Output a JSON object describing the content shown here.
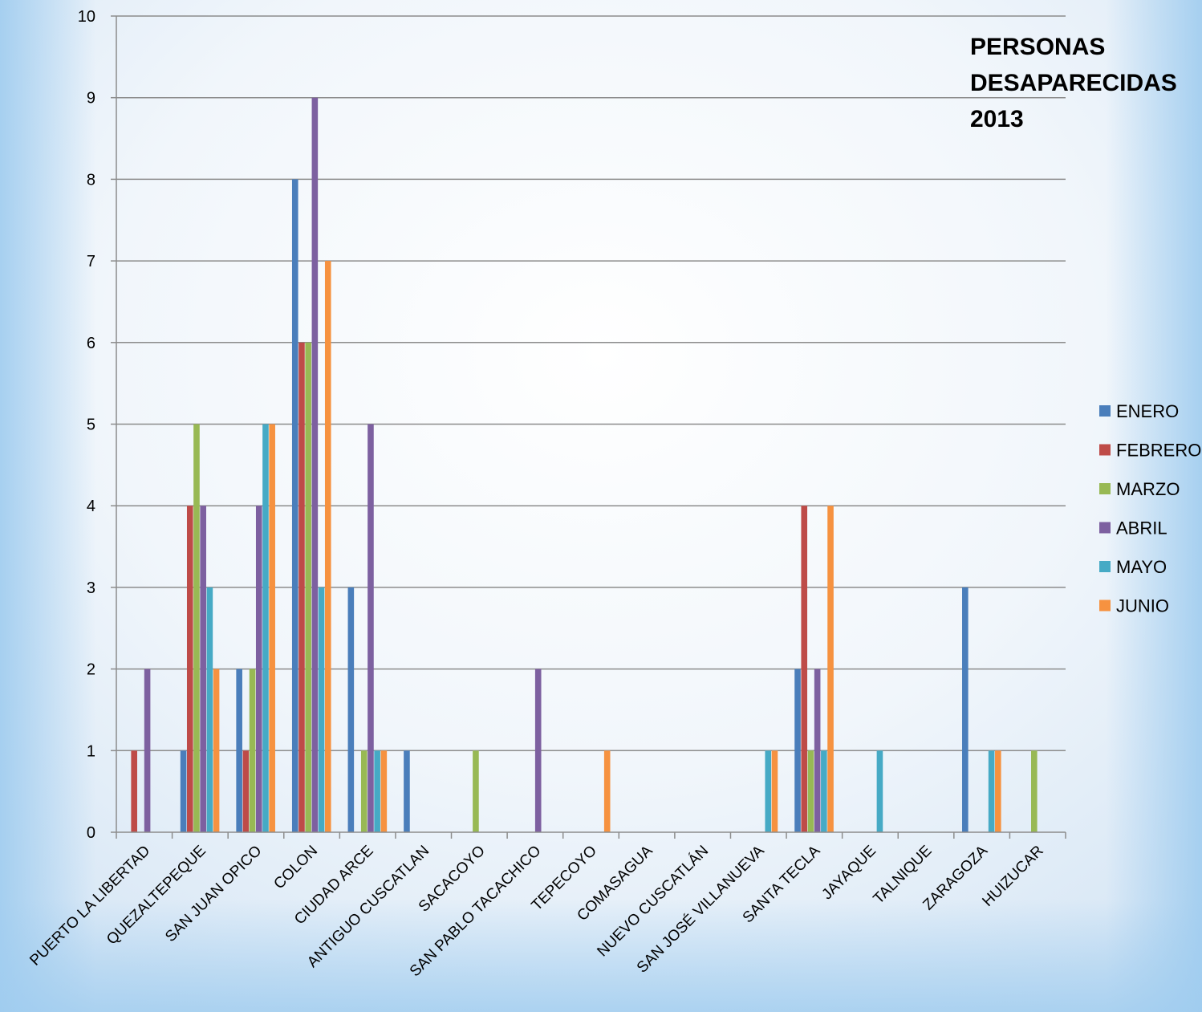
{
  "chart_data": {
    "type": "bar",
    "title_lines": [
      "PERSONAS",
      "DESAPARECIDAS",
      "2013"
    ],
    "categories": [
      "PUERTO LA LIBERTAD",
      "QUEZALTEPEQUE",
      "SAN JUAN OPICO",
      "COLON",
      "CIUDAD ARCE",
      "ANTIGUO CUSCATLAN",
      "SACACOYO",
      "SAN PABLO TACACHICO",
      "TEPECOYO",
      "COMASAGUA",
      "NUEVO CUSCATLÁN",
      "SAN JOSÉ VILLANUEVA",
      "SANTA TECLA",
      "JAYAQUE",
      "TALNIQUE",
      "ZARAGOZA",
      "HUIZUCAR"
    ],
    "series": [
      {
        "name": "ENERO",
        "color": "#4a7ebb",
        "values": [
          0,
          1,
          2,
          8,
          3,
          1,
          0,
          0,
          0,
          0,
          0,
          0,
          2,
          0,
          0,
          3,
          0
        ]
      },
      {
        "name": "FEBRERO",
        "color": "#be4b48",
        "values": [
          1,
          4,
          1,
          6,
          0,
          0,
          0,
          0,
          0,
          0,
          0,
          0,
          4,
          0,
          0,
          0,
          0
        ]
      },
      {
        "name": "MARZO",
        "color": "#98b954",
        "values": [
          0,
          5,
          2,
          6,
          1,
          0,
          1,
          0,
          0,
          0,
          0,
          0,
          1,
          0,
          0,
          0,
          1
        ]
      },
      {
        "name": "ABRIL",
        "color": "#7d60a0",
        "values": [
          2,
          4,
          4,
          9,
          5,
          0,
          0,
          2,
          0,
          0,
          0,
          0,
          2,
          0,
          0,
          0,
          0
        ]
      },
      {
        "name": "MAYO",
        "color": "#46aac5",
        "values": [
          0,
          3,
          5,
          3,
          1,
          0,
          0,
          0,
          0,
          0,
          0,
          1,
          1,
          1,
          0,
          1,
          0
        ]
      },
      {
        "name": "JUNIO",
        "color": "#f69240",
        "values": [
          0,
          2,
          5,
          7,
          1,
          0,
          0,
          0,
          1,
          0,
          0,
          1,
          4,
          0,
          0,
          1,
          0
        ]
      }
    ],
    "ylim": [
      0,
      10
    ],
    "yticks": [
      "0",
      "1",
      "2",
      "3",
      "4",
      "5",
      "6",
      "7",
      "8",
      "9",
      "10"
    ],
    "grid": true,
    "legend_position": "right"
  }
}
